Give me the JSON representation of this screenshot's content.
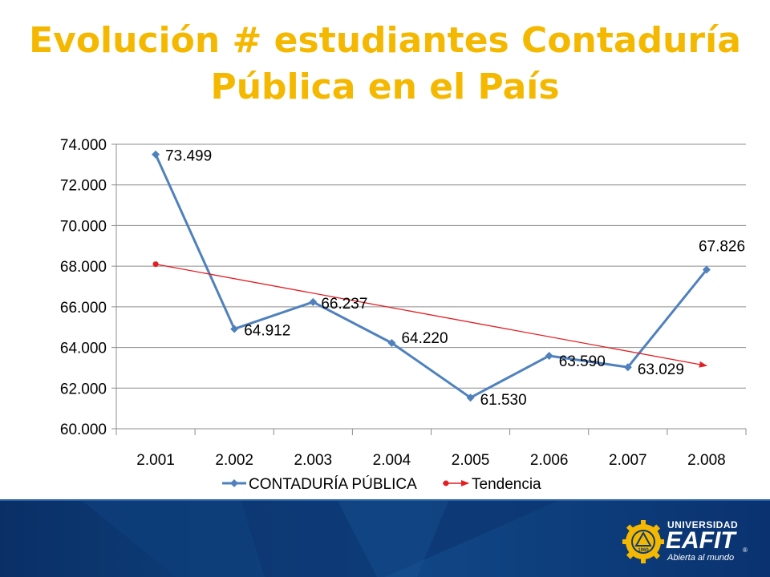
{
  "slide": {
    "title_line1": "Evolución # estudiantes Contaduría",
    "title_line2": "Pública en el País"
  },
  "brand": {
    "university": "UNIVERSIDAD",
    "name": "EAFIT",
    "registered": "®",
    "slogan": "Abierta al mundo",
    "seal_year": "1960",
    "colors": {
      "band": "#0d3a73",
      "gold": "#f5b800"
    }
  },
  "chart_data": {
    "type": "line",
    "title": "",
    "xlabel": "",
    "ylabel": "",
    "categories": [
      "2.001",
      "2.002",
      "2.003",
      "2.004",
      "2.005",
      "2.006",
      "2.007",
      "2.008"
    ],
    "y_ticks": [
      "60.000",
      "62.000",
      "64.000",
      "66.000",
      "68.000",
      "70.000",
      "72.000",
      "74.000"
    ],
    "ylim": [
      60000,
      74000
    ],
    "grid": true,
    "legend_position": "bottom",
    "series": [
      {
        "name": "CONTADURÍA PÚBLICA",
        "color": "#4f81bd",
        "marker": "diamond",
        "values": [
          73499,
          64912,
          66237,
          64220,
          61530,
          63590,
          63029,
          67826
        ],
        "labels": [
          "73.499",
          "64.912",
          "66.237",
          "64.220",
          "61.530",
          "63.590",
          "63.029",
          "67.826"
        ]
      },
      {
        "name": "Tendencia",
        "color": "#e31e24",
        "marker": "arrow",
        "start": {
          "x": "2.001",
          "y": 68100
        },
        "end": {
          "x": "2.008",
          "y": 63100
        }
      }
    ]
  }
}
